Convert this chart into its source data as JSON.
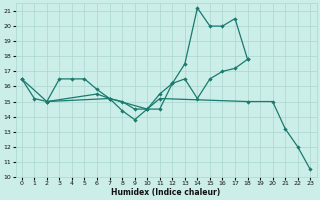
{
  "xlabel": "Humidex (Indice chaleur)",
  "xlim": [
    -0.5,
    23.5
  ],
  "ylim": [
    10,
    21.5
  ],
  "yticks": [
    10,
    11,
    12,
    13,
    14,
    15,
    16,
    17,
    18,
    19,
    20,
    21
  ],
  "xticks": [
    0,
    1,
    2,
    3,
    4,
    5,
    6,
    7,
    8,
    9,
    10,
    11,
    12,
    13,
    14,
    15,
    16,
    17,
    18,
    19,
    20,
    21,
    22,
    23
  ],
  "bg_color": "#cceee9",
  "grid_color": "#aad6d0",
  "line_color": "#1a7a6e",
  "line1_x": [
    0,
    1,
    2,
    3,
    4,
    5,
    6,
    7,
    10,
    11,
    12,
    13,
    14,
    15,
    16,
    17,
    18
  ],
  "line1_y": [
    16.5,
    15.2,
    15.0,
    16.5,
    16.5,
    16.5,
    15.8,
    15.2,
    14.5,
    14.5,
    16.2,
    17.5,
    21.2,
    20.0,
    20.0,
    20.5,
    17.8
  ],
  "line2_x": [
    2,
    6,
    7,
    8,
    9,
    10,
    11,
    12,
    13,
    14,
    15,
    16,
    17,
    18
  ],
  "line2_y": [
    15.0,
    15.5,
    15.2,
    15.0,
    14.5,
    14.5,
    15.5,
    16.2,
    16.5,
    15.2,
    16.5,
    17.0,
    17.2,
    17.8
  ],
  "line3_x": [
    0,
    2,
    7,
    8,
    9,
    10,
    11,
    18,
    20,
    21,
    22,
    23
  ],
  "line3_y": [
    16.5,
    15.0,
    15.2,
    14.4,
    13.8,
    14.5,
    15.2,
    15.0,
    15.0,
    13.2,
    12.0,
    10.5
  ]
}
